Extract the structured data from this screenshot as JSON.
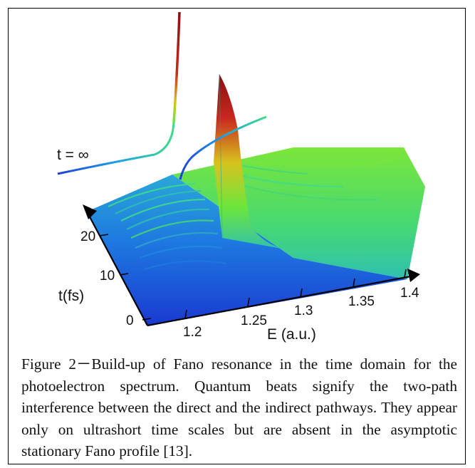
{
  "figure": {
    "curve_label": "t = ∞",
    "x_axis_title": "E (a.u.)",
    "x_ticks": [
      "1.2",
      "1.25",
      "1.3",
      "1.35",
      "1.4"
    ],
    "y_axis_title": "t(fs)",
    "y_ticks": [
      "0",
      "10",
      "20"
    ],
    "colormap": [
      "#1e3fd8",
      "#1ea0e6",
      "#3fdc8a",
      "#6ee63a",
      "#d8c21e",
      "#c8281e",
      "#8a0f10"
    ]
  },
  "caption": {
    "text": "Figure 2－Build-up of Fano resonance in the time domain for the photoelectron spectrum. Quantum beats signify the two-path interference between the direct and the indirect pathways. They appear only on ultrashort time scales but are absent in the asymptotic stationary Fano profile [13]."
  }
}
